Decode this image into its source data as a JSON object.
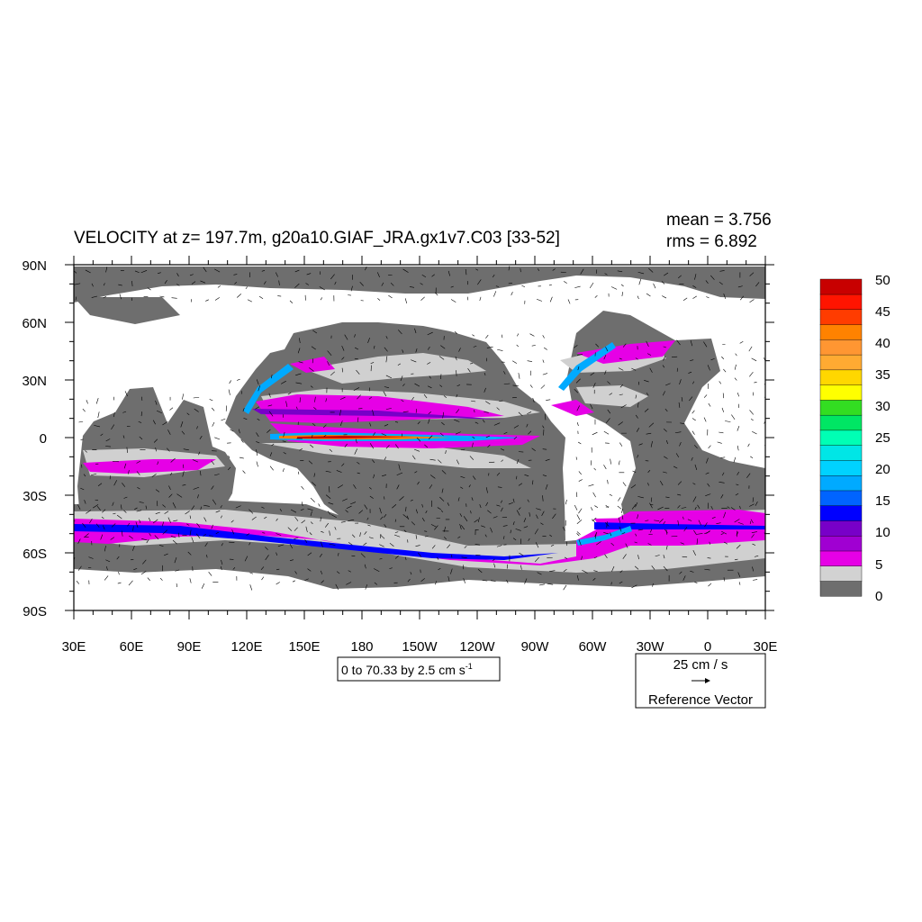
{
  "title": "VELOCITY at z= 197.7m, g20a10.GIAF_JRA.gx1v7.C03 [33-52]",
  "stats": {
    "mean": "mean = 3.756",
    "rms": "rms = 6.892"
  },
  "contour_info": {
    "main": "0 to 70.33 by 2.5 cm s",
    "sup": "-1"
  },
  "reference_vector": {
    "magnitude": "25 cm / s",
    "label": "Reference Vector"
  },
  "colors": {
    "land": "#ffffff",
    "ocean_slow": "#6e6e6e",
    "ocean_light": "#d0d0d0",
    "magenta": "#e600e6",
    "jet_core": "#cc0000"
  },
  "chart_data": {
    "type": "heatmap",
    "projection": "cylindrical-equidistant",
    "variable": "VELOCITY",
    "x_ticks": [
      "30E",
      "60E",
      "90E",
      "120E",
      "150E",
      "180",
      "150W",
      "120W",
      "90W",
      "60W",
      "30W",
      "0",
      "30E"
    ],
    "y_ticks": [
      "90N",
      "60N",
      "30N",
      "0",
      "30S",
      "60S",
      "90S"
    ],
    "xlim": [
      30,
      390
    ],
    "ylim": [
      -90,
      90
    ],
    "colorbar": {
      "labels": [
        "50",
        "45",
        "40",
        "35",
        "30",
        "25",
        "20",
        "15",
        "10",
        "5",
        "0"
      ],
      "levels": [
        0,
        2.5,
        5,
        7.5,
        10,
        12.5,
        15,
        17.5,
        20,
        22.5,
        25,
        27.5,
        30,
        32.5,
        35,
        37.5,
        40,
        42.5,
        45,
        47.5,
        50
      ],
      "colors": [
        "#6e6e6e",
        "#d2d2d2",
        "#e600e6",
        "#a000d2",
        "#7800c8",
        "#0000ff",
        "#0064ff",
        "#00aaff",
        "#00d2ff",
        "#00e6e6",
        "#00ffb4",
        "#00e664",
        "#33dd22",
        "#ffff00",
        "#ffd700",
        "#ffaa32",
        "#ff9632",
        "#ff8200",
        "#ff3c00",
        "#ff1400",
        "#c80000"
      ]
    },
    "mean": 3.756,
    "rms": 6.892,
    "reference_vector_cm_s": 25
  }
}
